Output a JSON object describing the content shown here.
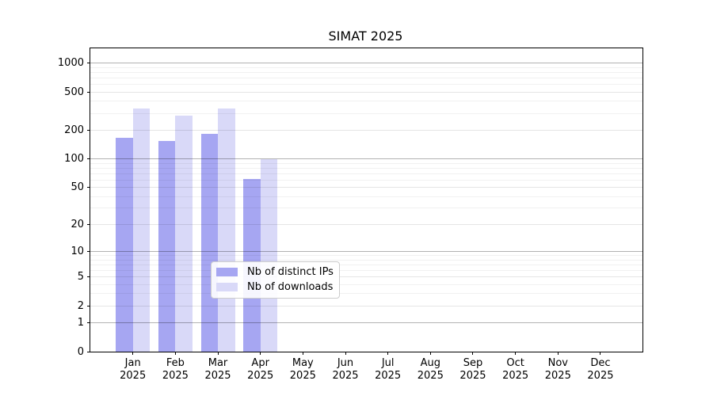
{
  "title": "SIMAT 2025",
  "chart_data": {
    "type": "bar",
    "title": "SIMAT 2025",
    "categories": [
      "Jan",
      "Feb",
      "Mar",
      "Apr",
      "May",
      "Jun",
      "Jul",
      "Aug",
      "Sep",
      "Oct",
      "Nov",
      "Dec"
    ],
    "x_tick_second_line": "2025",
    "series": [
      {
        "name": "Nb of distinct IPs",
        "color": "#a6a6f2",
        "values": [
          166,
          155,
          183,
          61,
          0,
          0,
          0,
          0,
          0,
          0,
          0,
          0
        ]
      },
      {
        "name": "Nb of downloads",
        "color": "#d9d9f8",
        "values": [
          340,
          285,
          340,
          100,
          0,
          0,
          0,
          0,
          0,
          0,
          0,
          0
        ]
      }
    ],
    "yscale": "log1p",
    "ylim": [
      0,
      1430
    ],
    "yticks": [
      0,
      1,
      2,
      5,
      10,
      20,
      50,
      100,
      200,
      500,
      1000
    ],
    "minor_grid_values": [
      3,
      4,
      6,
      7,
      8,
      9,
      30,
      40,
      60,
      70,
      80,
      90,
      300,
      400,
      600,
      700,
      800,
      900
    ],
    "major_grid_values": [
      1,
      10,
      100,
      1000
    ],
    "grid": true,
    "legend_position": "lower center",
    "axis_color": "#000000",
    "background_color": "#ffffff"
  }
}
